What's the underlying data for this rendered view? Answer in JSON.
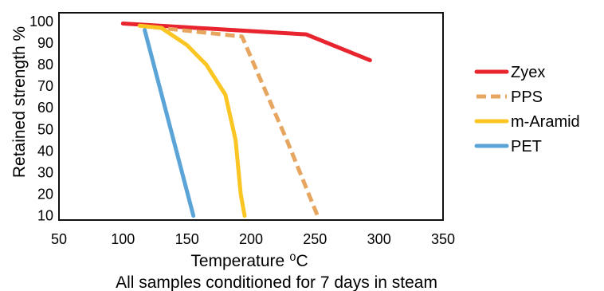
{
  "chart_data": {
    "type": "line",
    "xlabel": "Temperature",
    "xlabel_unit": "⁰C",
    "ylabel": "Retained strength %",
    "caption": "All samples conditioned for 7 days in steam",
    "xlim": [
      50,
      350
    ],
    "ylim": [
      8,
      104
    ],
    "xticks": [
      "50",
      "100",
      "150",
      "200",
      "250",
      "300",
      "350"
    ],
    "yticks": [
      "10",
      "20",
      "30",
      "40",
      "50",
      "60",
      "70",
      "80",
      "90",
      "100"
    ],
    "grid": false,
    "legend_position": "right",
    "series": [
      {
        "name": "Zyex",
        "color": "#e8242e",
        "dash": "solid",
        "points": [
          [
            100,
            99
          ],
          [
            243,
            94
          ],
          [
            293,
            82
          ]
        ]
      },
      {
        "name": "PPS",
        "color": "#e6a660",
        "dash": "dashed",
        "points": [
          [
            113,
            98
          ],
          [
            193,
            93
          ],
          [
            206,
            75
          ],
          [
            228,
            45
          ],
          [
            252,
            10
          ]
        ]
      },
      {
        "name": "m-Aramid",
        "color": "#fbc623",
        "dash": "solid",
        "points": [
          [
            113,
            98
          ],
          [
            130,
            97
          ],
          [
            150,
            89
          ],
          [
            165,
            80
          ],
          [
            180,
            66
          ],
          [
            188,
            45
          ],
          [
            192,
            20
          ],
          [
            195,
            10
          ]
        ]
      },
      {
        "name": "PET",
        "color": "#5aa4d8",
        "dash": "solid",
        "points": [
          [
            117,
            96
          ],
          [
            155,
            10
          ]
        ]
      }
    ]
  }
}
